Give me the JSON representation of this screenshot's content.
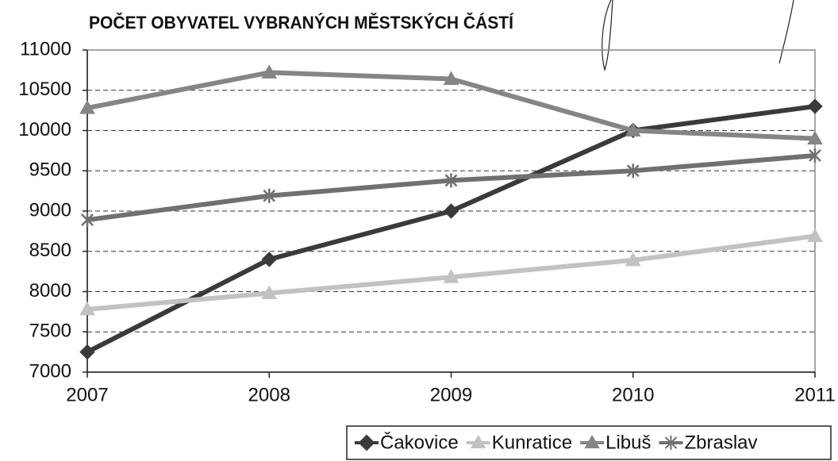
{
  "chart_data": {
    "type": "line",
    "title": "POČET OBYVATEL VYBRANÝCH MĚSTSKÝCH ČÁSTÍ",
    "x": [
      2007,
      2008,
      2009,
      2010,
      2011
    ],
    "xlim": [
      2007,
      2011
    ],
    "xticks": [
      2007,
      2008,
      2009,
      2010,
      2011
    ],
    "ylim": [
      7000,
      11000
    ],
    "yticks": [
      7000,
      7500,
      8000,
      8500,
      9000,
      9500,
      10000,
      10500,
      11000
    ],
    "grid": true,
    "legend": "bottom-right",
    "series": [
      {
        "name": "Čakovice",
        "color": "#3a3a3a",
        "marker": "diamond",
        "values": [
          7250,
          8400,
          9000,
          10000,
          10300
        ]
      },
      {
        "name": "Kunratice",
        "color": "#c2c2c2",
        "marker": "triangle",
        "values": [
          7780,
          7980,
          8180,
          8390,
          8690
        ]
      },
      {
        "name": "Libuš",
        "color": "#858585",
        "marker": "triangle",
        "values": [
          10280,
          10720,
          10640,
          10000,
          9900
        ]
      },
      {
        "name": "Zbraslav",
        "color": "#707070",
        "marker": "star",
        "values": [
          8890,
          9190,
          9380,
          9500,
          9690
        ]
      }
    ]
  }
}
